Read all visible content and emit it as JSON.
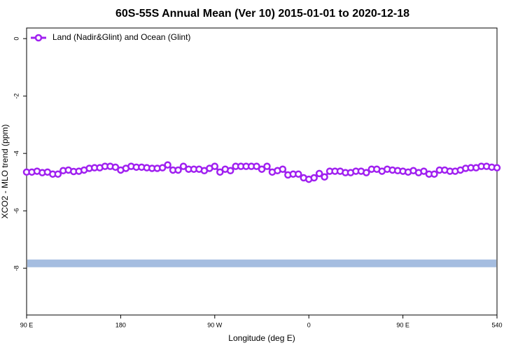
{
  "chart_data": {
    "type": "line",
    "title": "60S-55S Annual Mean (Ver 10)   2015-01-01 to 2020-12-18",
    "x_label": "Longitude (deg E)",
    "y_label": "XCO2 - MLO trend (ppm)",
    "x": [
      90,
      95,
      100,
      105,
      110,
      115,
      120,
      125,
      130,
      135,
      140,
      145,
      150,
      155,
      160,
      165,
      170,
      175,
      180,
      185,
      190,
      195,
      200,
      205,
      210,
      215,
      220,
      225,
      230,
      235,
      240,
      245,
      250,
      255,
      260,
      265,
      270,
      275,
      280,
      285,
      290,
      295,
      300,
      305,
      310,
      315,
      320,
      325,
      330,
      335,
      340,
      345,
      350,
      355,
      360,
      365,
      370,
      375,
      380,
      385,
      390,
      395,
      400,
      405,
      410,
      415,
      420,
      425,
      430,
      435,
      440,
      445,
      450,
      455,
      460,
      465,
      470,
      475,
      480,
      485,
      490,
      495,
      500,
      505,
      510,
      515,
      520,
      525,
      530,
      535,
      540
    ],
    "series": [
      {
        "name": "Land (Nadir&Glint) and Ocean (Glint)",
        "color": "#a020f0",
        "values": [
          -4.65,
          -4.65,
          -4.62,
          -4.67,
          -4.65,
          -4.72,
          -4.72,
          -4.6,
          -4.58,
          -4.63,
          -4.62,
          -4.58,
          -4.52,
          -4.5,
          -4.5,
          -4.45,
          -4.45,
          -4.48,
          -4.58,
          -4.52,
          -4.45,
          -4.48,
          -4.48,
          -4.5,
          -4.52,
          -4.52,
          -4.5,
          -4.4,
          -4.58,
          -4.58,
          -4.45,
          -4.55,
          -4.55,
          -4.55,
          -4.6,
          -4.52,
          -4.45,
          -4.65,
          -4.55,
          -4.6,
          -4.45,
          -4.45,
          -4.45,
          -4.45,
          -4.45,
          -4.55,
          -4.45,
          -4.65,
          -4.6,
          -4.55,
          -4.75,
          -4.72,
          -4.72,
          -4.85,
          -4.9,
          -4.85,
          -4.7,
          -4.82,
          -4.62,
          -4.62,
          -4.62,
          -4.67,
          -4.67,
          -4.62,
          -4.62,
          -4.67,
          -4.55,
          -4.55,
          -4.62,
          -4.55,
          -4.58,
          -4.6,
          -4.62,
          -4.65,
          -4.6,
          -4.67,
          -4.62,
          -4.72,
          -4.72,
          -4.58,
          -4.58,
          -4.62,
          -4.62,
          -4.58,
          -4.52,
          -4.5,
          -4.5,
          -4.45,
          -4.45,
          -4.48,
          -4.5
        ]
      }
    ],
    "reference_line": {
      "value": -7.83,
      "color": "#a5bde0"
    },
    "xlim": [
      90,
      540
    ],
    "xticks": [
      {
        "value": 90,
        "label": "90 E"
      },
      180,
      {
        "value": 270,
        "label": "90 W"
      },
      {
        "value": 360,
        "label": "0"
      },
      {
        "value": 450,
        "label": "90 E"
      },
      540
    ],
    "ylim": [
      -9.63,
      0.37
    ],
    "yticks": [
      0,
      -2,
      -4,
      -6,
      -8
    ],
    "legend": "top-left"
  }
}
